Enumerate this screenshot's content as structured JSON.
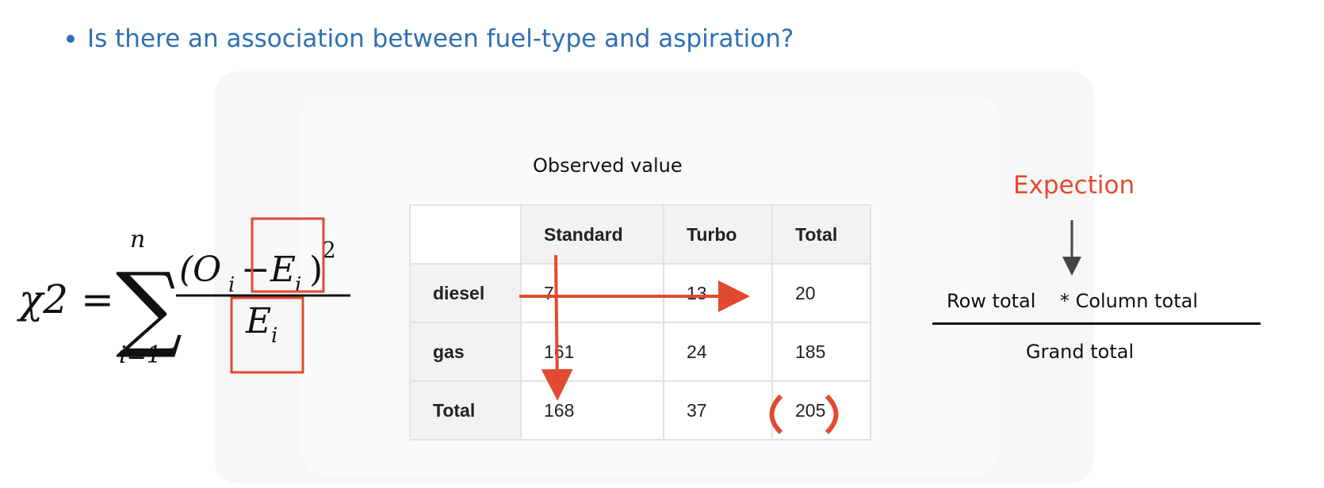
{
  "slide": {
    "question": "Is there an association between fuel-type and aspiration?"
  },
  "formula": {
    "lhs": "χ2 =",
    "sum_upper": "n",
    "sum_lower": "i=1",
    "numerator_open": "(O",
    "numerator_sub_o": "i",
    "numerator_minus": "−E",
    "numerator_sub_e": "i",
    "numerator_close": ")",
    "exponent": "2",
    "denominator_e": "E",
    "denominator_sub": "i"
  },
  "table": {
    "caption": "Observed value",
    "columns": [
      "",
      "Standard",
      "Turbo",
      "Total"
    ],
    "rows": [
      {
        "label": "diesel",
        "cells": [
          "7",
          "13",
          "20"
        ]
      },
      {
        "label": "gas",
        "cells": [
          "161",
          "24",
          "185"
        ]
      },
      {
        "label": "Total",
        "cells": [
          "168",
          "37",
          "205"
        ]
      }
    ]
  },
  "expectation": {
    "label": "Expection",
    "numerator": "Row total    * Column total",
    "denominator": "Grand total"
  },
  "colors": {
    "accent_blue": "#2f6fb5",
    "annotation_red": "#e24a2f"
  }
}
